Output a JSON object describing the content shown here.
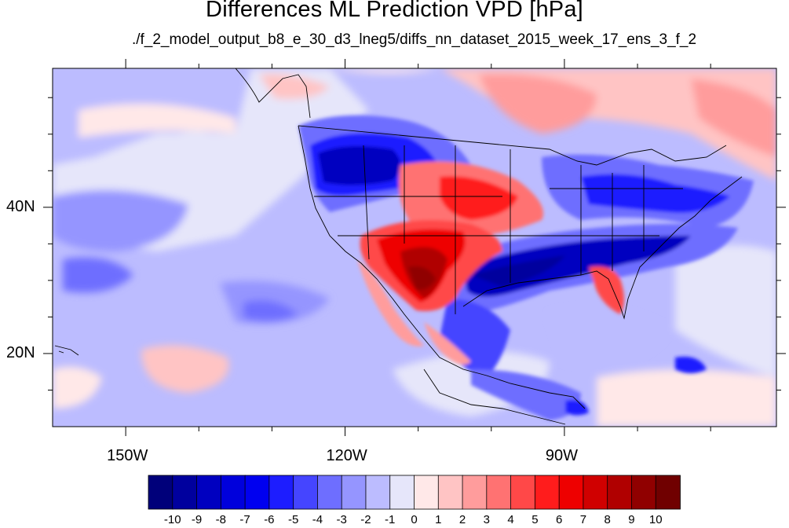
{
  "title": "Differences ML Prediction VPD [hPa]",
  "subtitle": "./f_2_model_output_b8_e_30_d3_lneg5/diffs_nn_dataset_2015_week_17_ens_3_f_2",
  "axes": {
    "lon_ticks": [
      {
        "value": -150,
        "label": "150W"
      },
      {
        "value": -120,
        "label": "120W"
      },
      {
        "value": -90,
        "label": "90W"
      }
    ],
    "lat_ticks": [
      {
        "value": 40,
        "label": "40N"
      },
      {
        "value": 20,
        "label": "20N"
      }
    ],
    "lon_range": [
      -160,
      -61
    ],
    "lat_range": [
      10,
      59
    ]
  },
  "colorbar": {
    "labels": [
      "-10",
      "-9",
      "-8",
      "-7",
      "-6",
      "-5",
      "-4",
      "-3",
      "-2",
      "-1",
      "0",
      "1",
      "2",
      "3",
      "4",
      "5",
      "6",
      "7",
      "8",
      "9",
      "10"
    ],
    "colors": [
      "#00007a",
      "#00009e",
      "#0000c0",
      "#0000dc",
      "#0000f0",
      "#1d1dff",
      "#4545ff",
      "#6e6eff",
      "#9595ff",
      "#bcbcff",
      "#e6e6fa",
      "#ffe8e8",
      "#ffc4c4",
      "#ff9c9c",
      "#ff7272",
      "#ff4848",
      "#ff1c1c",
      "#ee0000",
      "#d00000",
      "#b00000",
      "#900000",
      "#700000"
    ]
  }
}
